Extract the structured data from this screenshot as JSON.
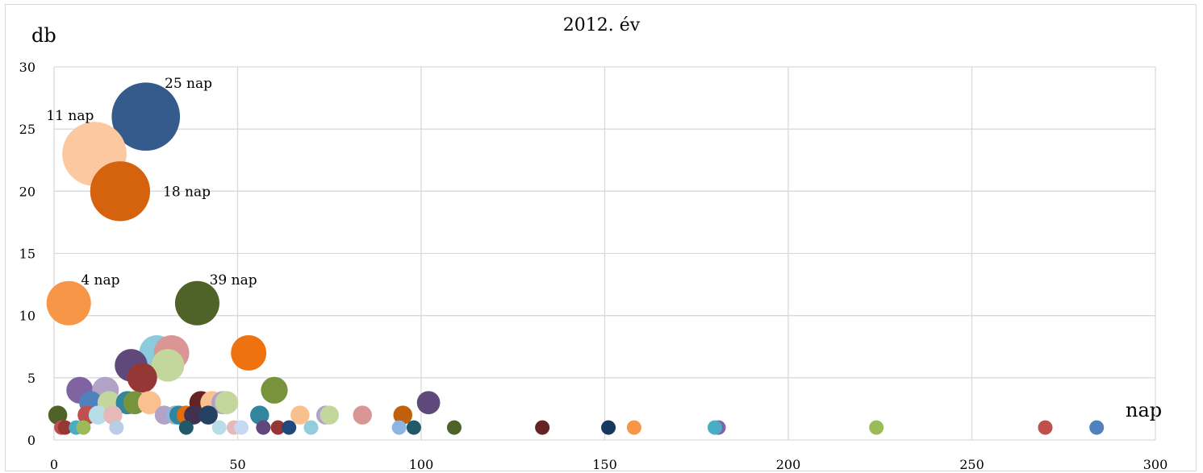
{
  "chart_data": {
    "type": "scatter",
    "title": "2012. év",
    "xlabel": "nap",
    "ylabel": "db",
    "xlim": [
      0,
      300
    ],
    "ylim": [
      0,
      30
    ],
    "xticks": [
      0,
      50,
      100,
      150,
      200,
      250,
      300
    ],
    "yticks": [
      0,
      5,
      10,
      15,
      20,
      25,
      30
    ],
    "grid": true,
    "points": [
      {
        "x": 25,
        "y": 26,
        "label": "25 nap",
        "color": "#355a8c"
      },
      {
        "x": 11,
        "y": 23,
        "label": "11 nap",
        "color": "#fbc8a0"
      },
      {
        "x": 18,
        "y": 20,
        "label": "18 nap",
        "color": "#d5620d"
      },
      {
        "x": 4,
        "y": 11,
        "label": "4 nap",
        "color": "#f79646"
      },
      {
        "x": 39,
        "y": 11,
        "label": "39 nap",
        "color": "#4f6228"
      },
      {
        "x": 28,
        "y": 7,
        "color": "#8ccbdd"
      },
      {
        "x": 32,
        "y": 7,
        "color": "#d99694"
      },
      {
        "x": 53,
        "y": 7,
        "color": "#ee720f"
      },
      {
        "x": 21,
        "y": 6,
        "color": "#5f497a"
      },
      {
        "x": 31,
        "y": 6,
        "color": "#c3d69b"
      },
      {
        "x": 24,
        "y": 5,
        "color": "#953735"
      },
      {
        "x": 7,
        "y": 4,
        "color": "#8064a2"
      },
      {
        "x": 14,
        "y": 4,
        "color": "#b3a2c7"
      },
      {
        "x": 60,
        "y": 4,
        "color": "#77933c"
      },
      {
        "x": 10,
        "y": 3,
        "color": "#4f81bd"
      },
      {
        "x": 15,
        "y": 3,
        "color": "#c3d69b"
      },
      {
        "x": 20,
        "y": 3,
        "color": "#31859c"
      },
      {
        "x": 22,
        "y": 3,
        "color": "#77933c"
      },
      {
        "x": 26,
        "y": 3,
        "color": "#fac090"
      },
      {
        "x": 40,
        "y": 3,
        "color": "#632423"
      },
      {
        "x": 43,
        "y": 3,
        "color": "#fac090"
      },
      {
        "x": 46,
        "y": 3,
        "color": "#b3a2c7"
      },
      {
        "x": 47,
        "y": 3,
        "color": "#c3d69b"
      },
      {
        "x": 102,
        "y": 3,
        "color": "#5f497a"
      },
      {
        "x": 1,
        "y": 2,
        "color": "#4f6228"
      },
      {
        "x": 9,
        "y": 2,
        "color": "#c0504d"
      },
      {
        "x": 12,
        "y": 2,
        "color": "#b7dee8"
      },
      {
        "x": 16,
        "y": 2,
        "color": "#e6b9b8"
      },
      {
        "x": 30,
        "y": 2,
        "color": "#b3a2c7"
      },
      {
        "x": 33,
        "y": 2,
        "color": "#95b3d7"
      },
      {
        "x": 34,
        "y": 2,
        "color": "#31859c"
      },
      {
        "x": 36,
        "y": 2,
        "color": "#e46c0a"
      },
      {
        "x": 38,
        "y": 2,
        "color": "#403151"
      },
      {
        "x": 42,
        "y": 2,
        "color": "#244062"
      },
      {
        "x": 56,
        "y": 2,
        "color": "#31859c"
      },
      {
        "x": 67,
        "y": 2,
        "color": "#fabf8f"
      },
      {
        "x": 74,
        "y": 2,
        "color": "#b3a2c7"
      },
      {
        "x": 75,
        "y": 2,
        "color": "#c3d69b"
      },
      {
        "x": 84,
        "y": 2,
        "color": "#da9694"
      },
      {
        "x": 95,
        "y": 2,
        "color": "#c0600a"
      },
      {
        "x": 2,
        "y": 1,
        "color": "#c0504d"
      },
      {
        "x": 3,
        "y": 1,
        "color": "#953735"
      },
      {
        "x": 6,
        "y": 1,
        "color": "#4bacc6"
      },
      {
        "x": 8,
        "y": 1,
        "color": "#9bbb59"
      },
      {
        "x": 17,
        "y": 1,
        "color": "#b9cde5"
      },
      {
        "x": 36,
        "y": 1,
        "color": "#215968"
      },
      {
        "x": 45,
        "y": 1,
        "color": "#b7dee8"
      },
      {
        "x": 49,
        "y": 1,
        "color": "#e6b9b8"
      },
      {
        "x": 51,
        "y": 1,
        "color": "#c6d9f1"
      },
      {
        "x": 57,
        "y": 1,
        "color": "#60497a"
      },
      {
        "x": 61,
        "y": 1,
        "color": "#963634"
      },
      {
        "x": 64,
        "y": 1,
        "color": "#1f497d"
      },
      {
        "x": 70,
        "y": 1,
        "color": "#92cddc"
      },
      {
        "x": 94,
        "y": 1,
        "color": "#8eb4e3"
      },
      {
        "x": 98,
        "y": 1,
        "color": "#215968"
      },
      {
        "x": 109,
        "y": 1,
        "color": "#4f6228"
      },
      {
        "x": 133,
        "y": 1,
        "color": "#632423"
      },
      {
        "x": 151,
        "y": 1,
        "color": "#17375e"
      },
      {
        "x": 158,
        "y": 1,
        "color": "#f79646"
      },
      {
        "x": 181,
        "y": 1,
        "color": "#8064a2"
      },
      {
        "x": 180,
        "y": 1,
        "color": "#4bacc6"
      },
      {
        "x": 224,
        "y": 1,
        "color": "#9bbb59"
      },
      {
        "x": 270,
        "y": 1,
        "color": "#c0504d"
      },
      {
        "x": 284,
        "y": 1,
        "color": "#4f81bd"
      }
    ]
  }
}
